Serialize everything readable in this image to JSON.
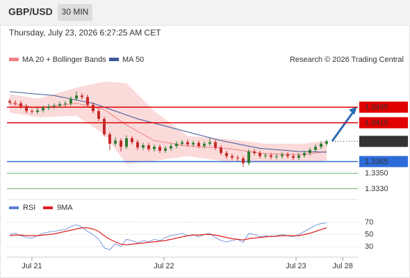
{
  "header": {
    "symbol": "GBP/USD",
    "interval": "30 MIN",
    "timestamp": "Thursday, July 23, 2026 6:27:25 AM CET"
  },
  "chart_data": [
    {
      "type": "candlestick",
      "copyright": "Research © 2026 Trading Central",
      "up_color": "#2e7d32",
      "down_color": "#c62828",
      "xlim": [
        -0.5,
        62.625
      ],
      "xticks": [
        {
          "value": 4,
          "label": "Jul 21"
        },
        {
          "value": 27.75,
          "label": "Jul 22"
        },
        {
          "value": 51.5,
          "label": "Jul 23"
        },
        {
          "value": 59.9,
          "label": "Jul 28"
        }
      ],
      "ylim": [
        1.3318,
        1.3488
      ],
      "open": [
        1.3443,
        1.3441,
        1.344,
        1.3436,
        1.343,
        1.3429,
        1.3431,
        1.3434,
        1.3436,
        1.3437,
        1.3439,
        1.344,
        1.3446,
        1.345,
        1.3448,
        1.3438,
        1.343,
        1.342,
        1.34,
        1.3388,
        1.3392,
        1.3384,
        1.3395,
        1.339,
        1.3383,
        1.3386,
        1.3381,
        1.3384,
        1.3379,
        1.3382,
        1.3385,
        1.3388,
        1.339,
        1.3387,
        1.3389,
        1.3385,
        1.3388,
        1.339,
        1.3383,
        1.3376,
        1.3372,
        1.337,
        1.3369,
        1.3363,
        1.3378,
        1.3376,
        1.3372,
        1.3373,
        1.3371,
        1.3372,
        1.3374,
        1.3372,
        1.337,
        1.3373,
        1.3376,
        1.338,
        1.3384,
        1.3388
      ],
      "high": [
        1.3446,
        1.3444,
        1.3443,
        1.3439,
        1.3433,
        1.3434,
        1.3437,
        1.3439,
        1.344,
        1.3442,
        1.3443,
        1.3449,
        1.3455,
        1.3453,
        1.3451,
        1.3441,
        1.3433,
        1.3423,
        1.3403,
        1.3396,
        1.3395,
        1.3399,
        1.3398,
        1.3393,
        1.3389,
        1.3389,
        1.3387,
        1.3387,
        1.3385,
        1.3388,
        1.3391,
        1.3393,
        1.3393,
        1.3392,
        1.3392,
        1.3391,
        1.3395,
        1.3393,
        1.3386,
        1.3379,
        1.3375,
        1.3373,
        1.3372,
        1.3381,
        1.3381,
        1.3379,
        1.3376,
        1.3376,
        1.3375,
        1.3377,
        1.3377,
        1.3375,
        1.3376,
        1.3379,
        1.3383,
        1.3387,
        1.3391,
        1.3393
      ],
      "low": [
        1.3438,
        1.3437,
        1.3433,
        1.3427,
        1.3426,
        1.3426,
        1.3428,
        1.3431,
        1.3433,
        1.3434,
        1.3436,
        1.3437,
        1.3443,
        1.3445,
        1.3435,
        1.3427,
        1.3417,
        1.3397,
        1.338,
        1.3385,
        1.3378,
        1.3381,
        1.3387,
        1.338,
        1.338,
        1.3378,
        1.3378,
        1.3376,
        1.3376,
        1.3379,
        1.3382,
        1.3385,
        1.3384,
        1.3384,
        1.3382,
        1.3382,
        1.3385,
        1.338,
        1.3373,
        1.3369,
        1.3367,
        1.3366,
        1.3358,
        1.336,
        1.3373,
        1.3369,
        1.3369,
        1.3368,
        1.3368,
        1.3369,
        1.3369,
        1.3367,
        1.3367,
        1.337,
        1.3373,
        1.3377,
        1.3381,
        1.3385
      ],
      "close": [
        1.3441,
        1.344,
        1.3436,
        1.343,
        1.3429,
        1.3431,
        1.3434,
        1.3436,
        1.3437,
        1.3439,
        1.344,
        1.3446,
        1.345,
        1.3448,
        1.3438,
        1.343,
        1.342,
        1.34,
        1.3388,
        1.3392,
        1.3384,
        1.3395,
        1.339,
        1.3383,
        1.3386,
        1.3381,
        1.3384,
        1.3379,
        1.3382,
        1.3385,
        1.3388,
        1.339,
        1.3387,
        1.3389,
        1.3385,
        1.3388,
        1.339,
        1.3383,
        1.3376,
        1.3372,
        1.337,
        1.3369,
        1.3363,
        1.3378,
        1.3376,
        1.3372,
        1.3373,
        1.3371,
        1.3372,
        1.3374,
        1.3372,
        1.337,
        1.3373,
        1.3376,
        1.338,
        1.3384,
        1.3388,
        1.3391
      ],
      "series": [
        {
          "name": "MA 20 + Bollinger Bands",
          "color": "#f08080",
          "band_color": "#fbdada",
          "x": [
            0,
            5,
            12,
            17,
            21,
            26,
            32,
            39,
            46,
            53,
            57
          ],
          "values": [
            1.344,
            1.3434,
            1.344,
            1.3432,
            1.3412,
            1.3392,
            1.3385,
            1.3382,
            1.3375,
            1.3374,
            1.3378
          ],
          "upper": [
            1.3452,
            1.3446,
            1.346,
            1.3468,
            1.3466,
            1.343,
            1.3398,
            1.3394,
            1.3388,
            1.3388,
            1.3392
          ],
          "lower": [
            1.3428,
            1.3422,
            1.3424,
            1.34,
            1.3362,
            1.3366,
            1.3372,
            1.3365,
            1.3364,
            1.3364,
            1.3366
          ]
        },
        {
          "name": "MA 50",
          "color": "#3b5998",
          "x": [
            0,
            8,
            15,
            23,
            31,
            38,
            45,
            52,
            57
          ],
          "values": [
            1.3455,
            1.345,
            1.344,
            1.342,
            1.3405,
            1.3392,
            1.3382,
            1.3378,
            1.3377
          ]
        }
      ],
      "levels": [
        {
          "value": 1.3435,
          "color": "#e00000",
          "box": true
        },
        {
          "value": 1.3415,
          "color": "#e00000",
          "box": true
        },
        {
          "value": 1.3391,
          "color": "#333333",
          "box": true,
          "style": "dotted"
        },
        {
          "value": 1.3365,
          "color": "#2d6bd8",
          "box": true
        },
        {
          "value": {
            "value": 1.335,
            "label": "1.3350"
          },
          "color": "#3a9a3a",
          "box": false
        },
        {
          "value": {
            "value": 1.333,
            "label": "1.3330"
          },
          "color": "#3a9a3a",
          "box": false
        }
      ]
    },
    {
      "type": "line",
      "xlim": [
        -0.5,
        62.625
      ],
      "ylim": [
        15,
        79
      ],
      "yticks": [
        30,
        50,
        70
      ],
      "grid": true,
      "series": [
        {
          "name": "RSI",
          "color": "#5b7fd4",
          "values": [
            50,
            52,
            48,
            45,
            44,
            48,
            52,
            54,
            55,
            57,
            58,
            63,
            66,
            62,
            55,
            50,
            42,
            28,
            25,
            35,
            30,
            42,
            40,
            36,
            40,
            38,
            42,
            40,
            45,
            48,
            50,
            52,
            48,
            50,
            46,
            50,
            52,
            45,
            40,
            38,
            40,
            42,
            37,
            52,
            50,
            46,
            48,
            46,
            48,
            50,
            48,
            46,
            50,
            55,
            60,
            65,
            68,
            69
          ]
        },
        {
          "name": "9MA",
          "color": "#e02020",
          "values": [
            48,
            49,
            49,
            48,
            48,
            48,
            49,
            50,
            51,
            53,
            55,
            57,
            59,
            61,
            61,
            59,
            55,
            48,
            42,
            38,
            34,
            33,
            34,
            35,
            36,
            37,
            38,
            39,
            40,
            42,
            44,
            46,
            48,
            49,
            49,
            50,
            50,
            49,
            47,
            45,
            43,
            42,
            41,
            43,
            44,
            45,
            46,
            47,
            47,
            48,
            48,
            48,
            48,
            50,
            52,
            55,
            58,
            61
          ]
        }
      ]
    }
  ]
}
